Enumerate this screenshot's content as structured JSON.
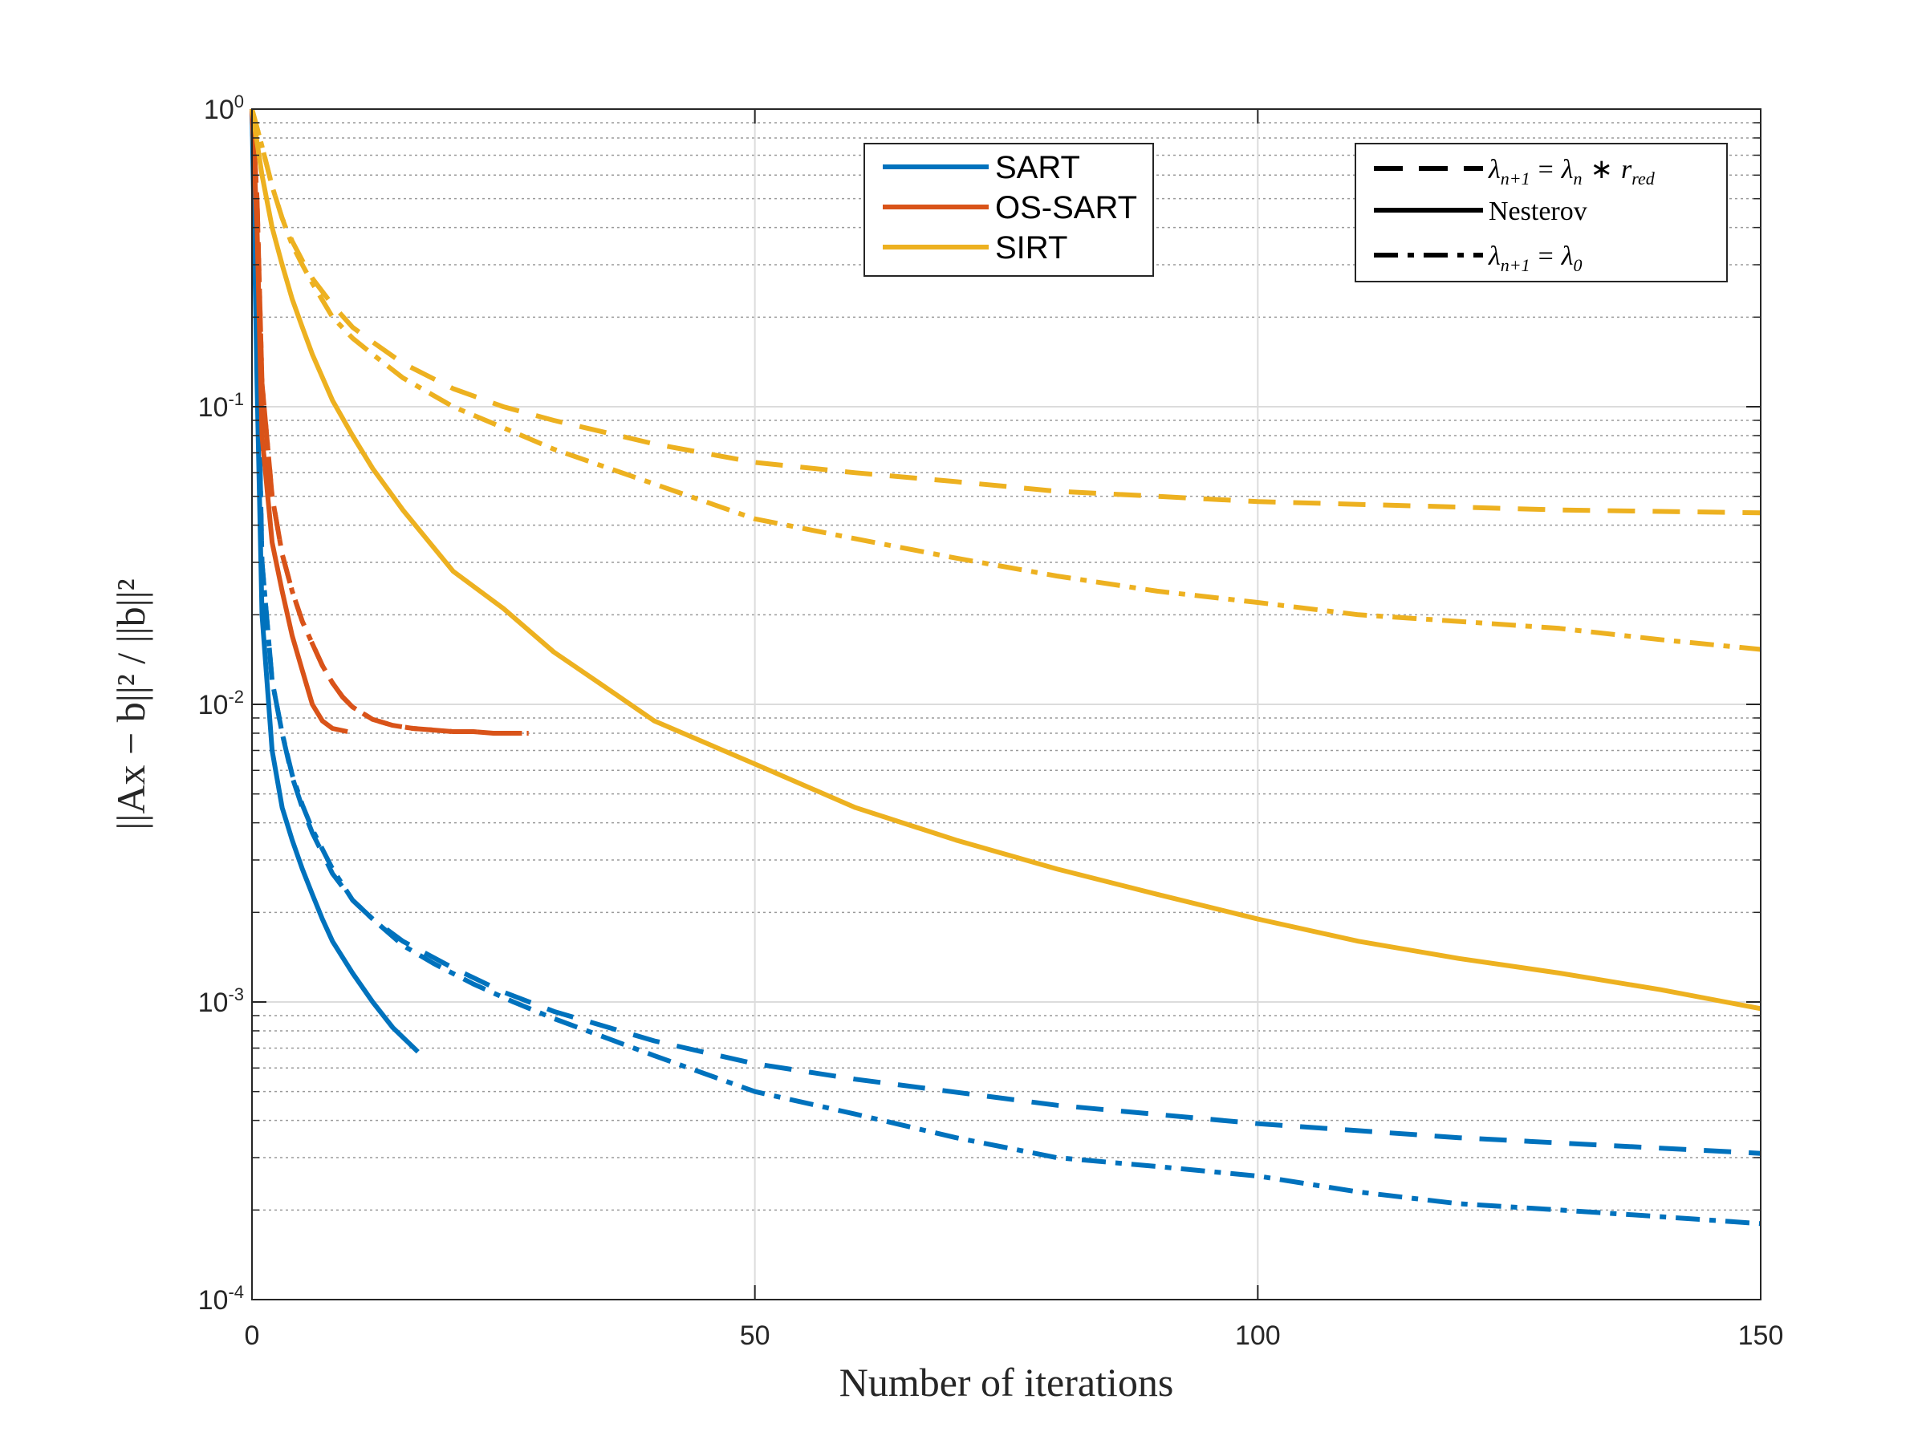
{
  "chart_data": {
    "type": "line",
    "title": "",
    "xlabel": "Number of iterations",
    "ylabel": "||Ax − b||² / ||b||²",
    "xlim": [
      0,
      150
    ],
    "ylim": [
      0.0001,
      1
    ],
    "yscale": "log",
    "grid": true,
    "x_ticks": [
      {
        "value": 0,
        "label": "0"
      },
      {
        "value": 50,
        "label": "50"
      },
      {
        "value": 100,
        "label": "100"
      },
      {
        "value": 150,
        "label": "150"
      }
    ],
    "y_ticks": [
      {
        "value": 1,
        "base": "10",
        "exp": "0"
      },
      {
        "value": 0.1,
        "base": "10",
        "exp": "-1"
      },
      {
        "value": 0.01,
        "base": "10",
        "exp": "-2"
      },
      {
        "value": 0.001,
        "base": "10",
        "exp": "-3"
      },
      {
        "value": 0.0001,
        "base": "10",
        "exp": "-4"
      }
    ],
    "method_legend": {
      "placement": "top-center",
      "entries": [
        {
          "name": "SART",
          "color": "#0072BD"
        },
        {
          "name": "OS-SART",
          "color": "#D95319"
        },
        {
          "name": "SIRT",
          "color": "#EDB120"
        }
      ]
    },
    "style_legend": {
      "placement": "top-right",
      "entries": [
        {
          "style": "dashed",
          "lhs": "λ",
          "lhs_sub": "n+1",
          "eq": "=",
          "rhs": "λ",
          "rhs_sub": "n",
          "op": "∗",
          "rhs2": "r",
          "rhs2_sub": "red"
        },
        {
          "style": "solid",
          "label": "Nesterov"
        },
        {
          "style": "dashdot",
          "lhs": "λ",
          "lhs_sub": "n+1",
          "eq": "=",
          "rhs": "λ",
          "rhs_sub": "0"
        }
      ]
    },
    "series": [
      {
        "method": "SART",
        "style": "dashed",
        "color": "#0072BD",
        "x": [
          0,
          0.5,
          1,
          2,
          3,
          4,
          5,
          6,
          8,
          10,
          12,
          15,
          20,
          25,
          30,
          40,
          50,
          60,
          80,
          100,
          120,
          150
        ],
        "y": [
          1,
          0.2,
          0.03,
          0.012,
          0.008,
          0.0057,
          0.0045,
          0.0037,
          0.0027,
          0.0022,
          0.0019,
          0.0016,
          0.0013,
          0.00108,
          0.00093,
          0.00074,
          0.00062,
          0.00055,
          0.00045,
          0.00039,
          0.00035,
          0.00031
        ]
      },
      {
        "method": "SART",
        "style": "solid",
        "color": "#0072BD",
        "x": [
          0,
          0.5,
          1,
          2,
          3,
          4,
          5,
          6,
          7,
          8,
          10,
          12,
          14,
          16.5
        ],
        "y": [
          1,
          0.12,
          0.02,
          0.007,
          0.0045,
          0.0035,
          0.0028,
          0.0023,
          0.0019,
          0.0016,
          0.00125,
          0.001,
          0.00082,
          0.00068
        ]
      },
      {
        "method": "SART",
        "style": "dashdot",
        "color": "#0072BD",
        "x": [
          0,
          0.5,
          1,
          2,
          3,
          4,
          5,
          6,
          8,
          10,
          12,
          15,
          18,
          22,
          26,
          30,
          40,
          50,
          60,
          70,
          80,
          90,
          100,
          110,
          120,
          130,
          140,
          150
        ],
        "y": [
          1,
          0.2,
          0.03,
          0.012,
          0.008,
          0.0058,
          0.0046,
          0.0038,
          0.0028,
          0.0022,
          0.0019,
          0.00155,
          0.00135,
          0.00115,
          0.001,
          0.00088,
          0.00066,
          0.0005,
          0.00042,
          0.00035,
          0.0003,
          0.00028,
          0.00026,
          0.00023,
          0.00021,
          0.0002,
          0.00019,
          0.00018
        ]
      },
      {
        "method": "OS-SART",
        "style": "dashed",
        "color": "#D95319",
        "x": [
          0,
          0.5,
          1,
          2,
          3,
          4,
          5,
          6,
          7,
          8,
          9,
          10,
          12,
          14,
          16,
          18,
          20,
          22,
          24,
          26,
          27.5
        ],
        "y": [
          1,
          0.5,
          0.12,
          0.05,
          0.032,
          0.024,
          0.019,
          0.016,
          0.0135,
          0.0118,
          0.0106,
          0.0098,
          0.0089,
          0.0085,
          0.0083,
          0.0082,
          0.0081,
          0.0081,
          0.008,
          0.008,
          0.008
        ]
      },
      {
        "method": "OS-SART",
        "style": "solid",
        "color": "#D95319",
        "x": [
          0,
          0.5,
          1,
          2,
          3,
          4,
          5,
          6,
          7,
          8,
          9.5
        ],
        "y": [
          1,
          0.4,
          0.08,
          0.035,
          0.024,
          0.017,
          0.013,
          0.01,
          0.0088,
          0.0083,
          0.0081
        ]
      },
      {
        "method": "OS-SART",
        "style": "dashdot",
        "color": "#D95319",
        "x": [
          0,
          0.5,
          1,
          2,
          3,
          4,
          5,
          6,
          7,
          8,
          9,
          10,
          12,
          14,
          16,
          18,
          20,
          22,
          24,
          26,
          27.5
        ],
        "y": [
          1,
          0.5,
          0.12,
          0.05,
          0.032,
          0.024,
          0.019,
          0.016,
          0.0135,
          0.0118,
          0.0106,
          0.0098,
          0.0089,
          0.0085,
          0.0083,
          0.0082,
          0.0081,
          0.0081,
          0.008,
          0.008,
          0.008
        ]
      },
      {
        "method": "SIRT",
        "style": "dashed",
        "color": "#EDB120",
        "x": [
          0,
          1,
          2,
          3,
          4,
          5,
          6,
          8,
          10,
          12,
          15,
          20,
          25,
          30,
          40,
          50,
          60,
          70,
          80,
          90,
          100,
          110,
          120,
          130,
          140,
          150
        ],
        "y": [
          1,
          0.75,
          0.55,
          0.43,
          0.36,
          0.31,
          0.27,
          0.22,
          0.185,
          0.165,
          0.14,
          0.115,
          0.1,
          0.09,
          0.075,
          0.065,
          0.06,
          0.056,
          0.052,
          0.05,
          0.048,
          0.047,
          0.046,
          0.045,
          0.0445,
          0.044
        ]
      },
      {
        "method": "SIRT",
        "style": "solid",
        "color": "#EDB120",
        "x": [
          0,
          1,
          2,
          3,
          4,
          5,
          6,
          8,
          10,
          12,
          15,
          20,
          25,
          30,
          35,
          40,
          50,
          60,
          70,
          80,
          90,
          100,
          110,
          120,
          130,
          140,
          150
        ],
        "y": [
          1,
          0.6,
          0.4,
          0.3,
          0.23,
          0.185,
          0.15,
          0.105,
          0.08,
          0.062,
          0.045,
          0.028,
          0.021,
          0.015,
          0.0115,
          0.0088,
          0.0063,
          0.0045,
          0.0035,
          0.0028,
          0.0023,
          0.0019,
          0.0016,
          0.0014,
          0.00125,
          0.0011,
          0.00095
        ]
      },
      {
        "method": "SIRT",
        "style": "dashdot",
        "color": "#EDB120",
        "x": [
          0,
          1,
          2,
          3,
          4,
          5,
          6,
          8,
          10,
          12,
          15,
          20,
          25,
          30,
          40,
          50,
          60,
          70,
          80,
          90,
          100,
          110,
          120,
          130,
          140,
          150
        ],
        "y": [
          1,
          0.75,
          0.55,
          0.43,
          0.35,
          0.3,
          0.26,
          0.2,
          0.17,
          0.15,
          0.125,
          0.1,
          0.085,
          0.072,
          0.055,
          0.042,
          0.036,
          0.031,
          0.027,
          0.024,
          0.022,
          0.02,
          0.019,
          0.018,
          0.0165,
          0.0153
        ]
      }
    ]
  }
}
